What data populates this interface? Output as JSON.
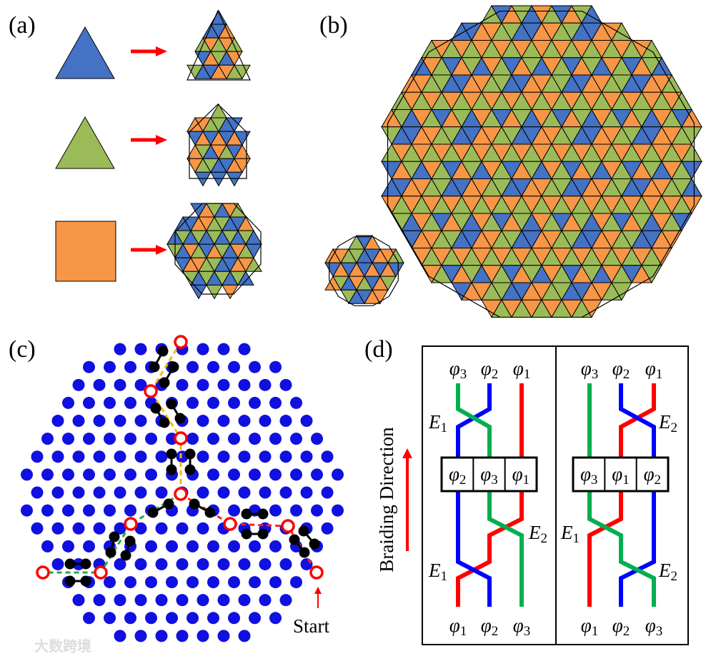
{
  "panels": {
    "a": "(a)",
    "b": "(b)",
    "c": "(c)",
    "d": "(d)"
  },
  "colors": {
    "blue": "#4472c4",
    "green": "#9bbb59",
    "orange": "#f79646",
    "dot": "#1010e0",
    "red": "#ff0000",
    "strand_green": "#00b050",
    "strand_blue": "#0000ff"
  },
  "panel_c": {
    "start_label": "Start"
  },
  "panel_d": {
    "axis_label": "Braiding Direction",
    "symbol": "φ",
    "left": {
      "top": [
        "3",
        "2",
        "1"
      ],
      "box": [
        "2",
        "3",
        "1"
      ],
      "bottom": [
        "1",
        "2",
        "3"
      ],
      "crossings": [
        "E",
        "1",
        "E",
        "2",
        "E",
        "1"
      ]
    },
    "right": {
      "top": [
        "3",
        "2",
        "1"
      ],
      "box": [
        "3",
        "1",
        "2"
      ],
      "bottom": [
        "1",
        "2",
        "3"
      ],
      "crossings": [
        "E",
        "2",
        "E",
        "1",
        "E",
        "2"
      ]
    }
  },
  "watermark": "大数跨境"
}
